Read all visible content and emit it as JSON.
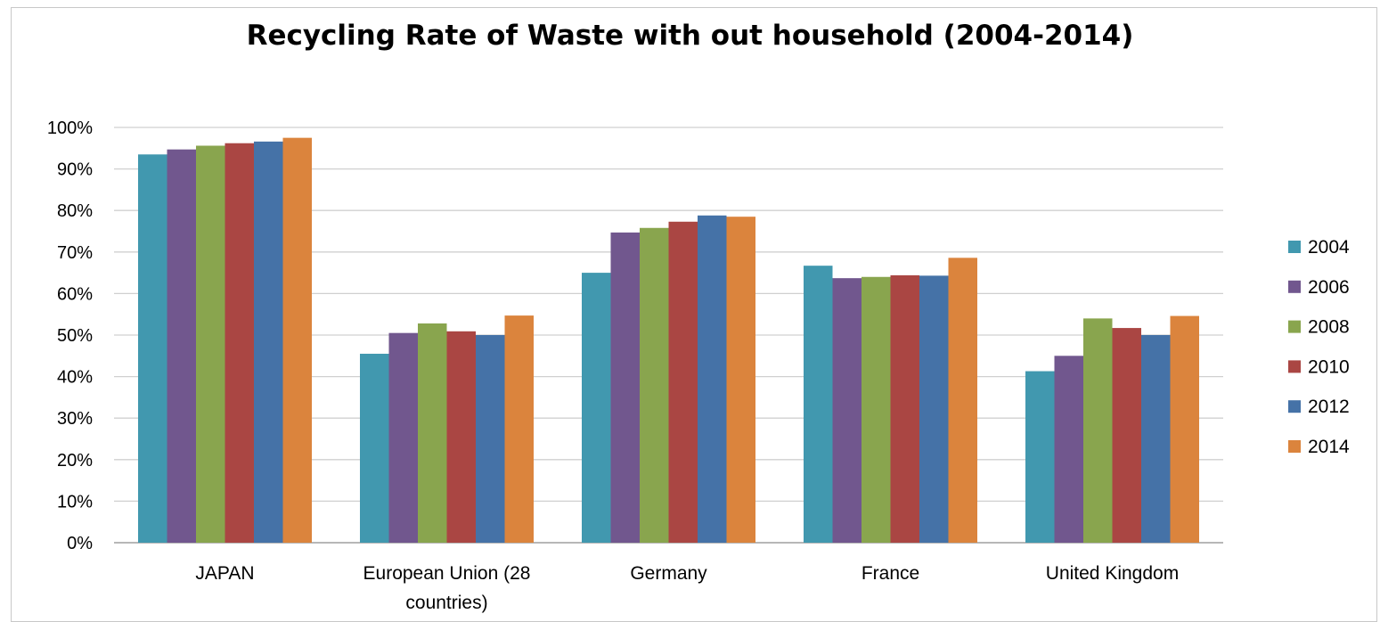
{
  "chart_data": {
    "type": "bar",
    "title": "Recycling Rate of Waste with out household (2004-2014)",
    "xlabel": "",
    "ylabel": "",
    "ylim": [
      0,
      100
    ],
    "yticks": [
      "0%",
      "10%",
      "20%",
      "30%",
      "40%",
      "50%",
      "60%",
      "70%",
      "80%",
      "90%",
      "100%"
    ],
    "grid": true,
    "legend": "right",
    "categories": [
      [
        "JAPAN"
      ],
      [
        "European Union (28",
        "countries)"
      ],
      [
        "Germany"
      ],
      [
        "France"
      ],
      [
        "United Kingdom"
      ]
    ],
    "series": [
      {
        "name": "2004",
        "color": "#4198af",
        "values": [
          93.5,
          45.5,
          65.0,
          66.7,
          41.3
        ]
      },
      {
        "name": "2006",
        "color": "#71578e",
        "values": [
          94.7,
          50.5,
          74.7,
          63.7,
          45.0
        ]
      },
      {
        "name": "2008",
        "color": "#89a54e",
        "values": [
          95.6,
          52.8,
          75.8,
          64.0,
          54.0
        ]
      },
      {
        "name": "2010",
        "color": "#aa4643",
        "values": [
          96.2,
          50.9,
          77.3,
          64.4,
          51.7
        ]
      },
      {
        "name": "2012",
        "color": "#4572a7",
        "values": [
          96.6,
          50.0,
          78.8,
          64.3,
          50.0
        ]
      },
      {
        "name": "2014",
        "color": "#db843d",
        "values": [
          97.5,
          54.7,
          78.5,
          68.6,
          54.6
        ]
      }
    ]
  }
}
